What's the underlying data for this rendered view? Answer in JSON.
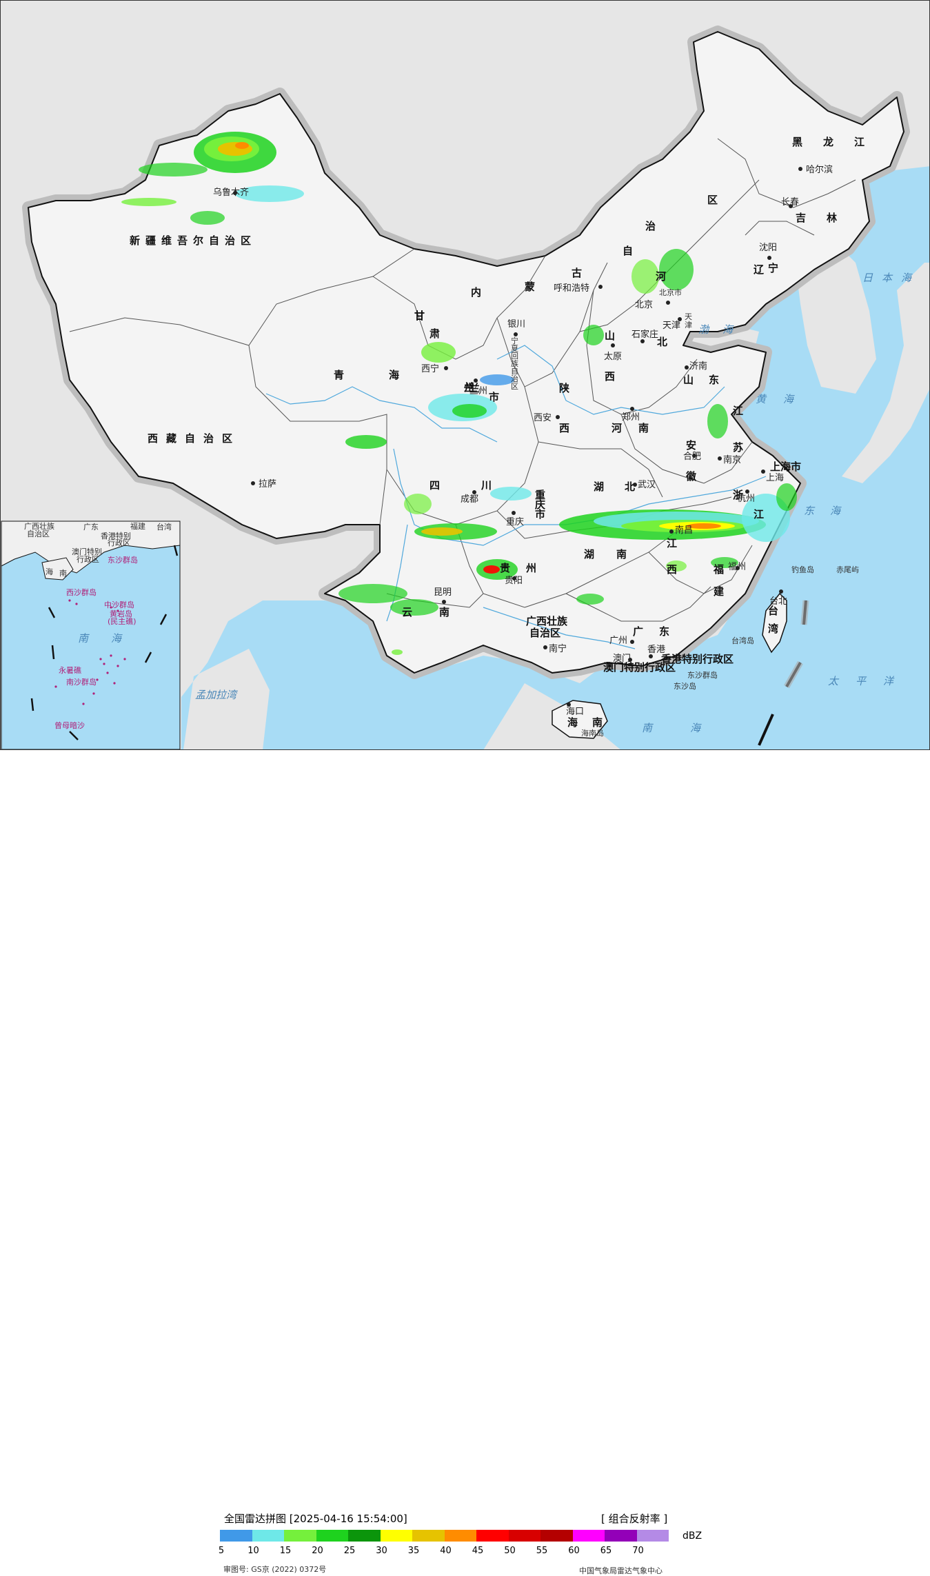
{
  "map": {
    "colors": {
      "sea": "#a8dcf5",
      "land_outside": "#e6e6e6",
      "china_land": "#f4f4f4",
      "border": "#111111",
      "river": "#4fa8dc"
    },
    "regions": {
      "xinjiang": "新疆维吾尔自治区",
      "tibet": "西藏自治区",
      "qinghai": "青海",
      "gansu": "甘肃",
      "neimenggu": [
        "内",
        "蒙",
        "古",
        "自",
        "治",
        "区"
      ],
      "heilongjiang": "黑龙江",
      "jilin": "吉林",
      "liaoning": "辽宁",
      "hebei": [
        "河",
        "北"
      ],
      "shanxi": [
        "山",
        "西"
      ],
      "shaanxi": [
        "陕",
        "西"
      ],
      "shandong": "山东",
      "henan": "河南",
      "jiangsu": [
        "江",
        "苏"
      ],
      "anhui": [
        "安",
        "徽"
      ],
      "shanghai": "上海市",
      "zhejiang": [
        "浙",
        "江"
      ],
      "sichuan": "四川",
      "chongqing": [
        "重",
        "庆",
        "市"
      ],
      "hubei": "湖北",
      "hunan": "湖南",
      "jiangxi": [
        "江",
        "西"
      ],
      "fujian": [
        "福",
        "建"
      ],
      "guizhou": "贵州",
      "yunnan": "云南",
      "guangxi": [
        "广西壮族",
        "自治区"
      ],
      "guangdong": "广东",
      "hainan": [
        "海",
        "南"
      ],
      "taiwan": [
        "台",
        "湾"
      ],
      "hongkong": "香港特别行政区",
      "macau": "澳门特别行政区",
      "ningxia": [
        "宁",
        "夏",
        "回",
        "族",
        "自",
        "治",
        "区"
      ],
      "tianjin": [
        "天",
        "津"
      ],
      "beijing_region": "北京市"
    },
    "cities": [
      {
        "id": "urumqi",
        "name": "乌鲁木齐"
      },
      {
        "id": "lhasa",
        "name": "拉萨"
      },
      {
        "id": "xining",
        "name": "西宁"
      },
      {
        "id": "lanzhou",
        "name": "兰州"
      },
      {
        "id": "yinchuan",
        "name": "银川"
      },
      {
        "id": "hohhot",
        "name": "呼和浩特"
      },
      {
        "id": "beijing",
        "name": "北京"
      },
      {
        "id": "tianjin",
        "name": "天津"
      },
      {
        "id": "shijiazhuang",
        "name": "石家庄"
      },
      {
        "id": "taiyuan",
        "name": "太原"
      },
      {
        "id": "jinan",
        "name": "济南"
      },
      {
        "id": "xian",
        "name": "西安"
      },
      {
        "id": "zhengzhou",
        "name": "郑州"
      },
      {
        "id": "hefei",
        "name": "合肥"
      },
      {
        "id": "nanjing",
        "name": "南京"
      },
      {
        "id": "shanghai",
        "name": "上海"
      },
      {
        "id": "hangzhou",
        "name": "杭州"
      },
      {
        "id": "wuhan",
        "name": "武汉"
      },
      {
        "id": "chengdu",
        "name": "成都"
      },
      {
        "id": "chongqing",
        "name": "重庆"
      },
      {
        "id": "guiyang",
        "name": "贵阳"
      },
      {
        "id": "kunming",
        "name": "昆明"
      },
      {
        "id": "nanning",
        "name": "南宁"
      },
      {
        "id": "guangzhou",
        "name": "广州"
      },
      {
        "id": "hongkong",
        "name": "香港"
      },
      {
        "id": "macau",
        "name": "澳门"
      },
      {
        "id": "fuzhou",
        "name": "福州"
      },
      {
        "id": "taipei",
        "name": "台北"
      },
      {
        "id": "haikou",
        "name": "海口"
      },
      {
        "id": "harbin",
        "name": "哈尔滨"
      },
      {
        "id": "changchun",
        "name": "长春"
      },
      {
        "id": "shenyang",
        "name": "沈阳"
      },
      {
        "id": "nanchang",
        "name": "南昌"
      }
    ],
    "seas": {
      "bohai": "渤海",
      "yellow_sea": "黄海",
      "east_sea": "东海",
      "south_sea": "南海",
      "pacific": "太平洋",
      "japan_sea": "日本海",
      "bengal": "孟加拉湾"
    },
    "islands": {
      "diaoyu": "钓鱼岛",
      "chiwei": "赤尾屿",
      "taiwan_island": "台湾岛",
      "dongsha": "东沙群岛",
      "dongsha_dao": "东沙岛",
      "hainan_island": "海南岛"
    },
    "inset": {
      "guangxi": "广西壮族",
      "zizhiqu": "自治区",
      "guangdong": "广东",
      "fujian": "福建",
      "taiwan": "台湾",
      "hongkong": "香港特别",
      "xingzheng": "行政区",
      "macau": "澳门特别",
      "macau2": "行政区",
      "dongsha": "东沙群岛",
      "hainan": "海南",
      "xisha": "西沙群岛",
      "zhongsha": "中沙群岛",
      "huangyan": "黄岩岛",
      "huangyan2": "(民主礁)",
      "south_sea": "南",
      "south_sea2": "海",
      "yongshu": "永暑礁",
      "nansha": "南沙群岛",
      "zengmu": "曾母暗沙"
    }
  },
  "legend": {
    "title": "全国雷达拼图 [2025-04-16 15:54:00]",
    "product": "[ 组合反射率 ]",
    "unit": "dBZ",
    "colors": [
      "#4099e8",
      "#6ee8e8",
      "#75f03c",
      "#1ed21e",
      "#0b950b",
      "#ffff00",
      "#e6c300",
      "#ff8c00",
      "#ff0000",
      "#d80000",
      "#b40000",
      "#ff00ff",
      "#9300b8",
      "#b48ae6"
    ],
    "ticks": [
      "5",
      "10",
      "15",
      "20",
      "25",
      "30",
      "35",
      "40",
      "45",
      "50",
      "55",
      "60",
      "65",
      "70"
    ],
    "approval": "审图号: GS京 (2022) 0372号",
    "center": "中国气象局雷达气象中心"
  }
}
